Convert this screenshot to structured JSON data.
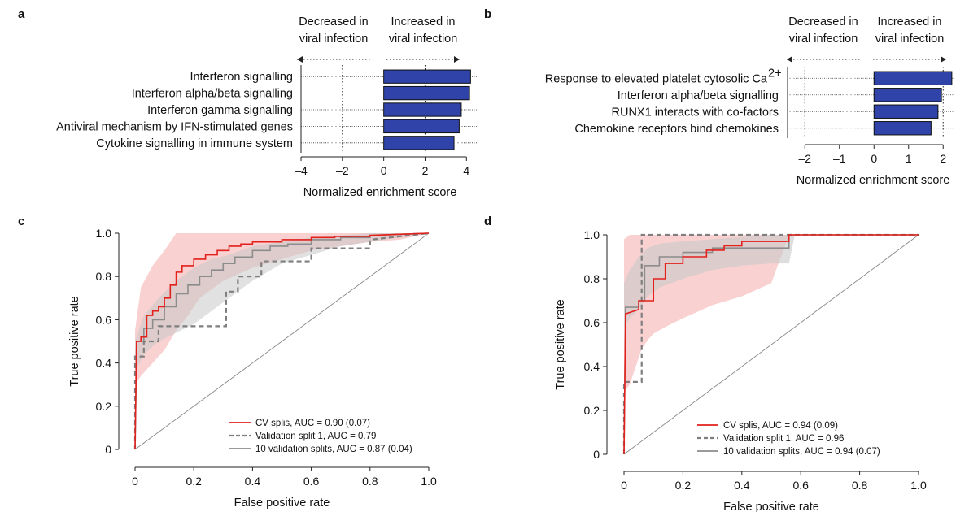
{
  "chart_data": [
    {
      "panel": "a",
      "type": "bar",
      "orientation": "horizontal",
      "direction_labels": {
        "left": [
          "Decreased in",
          "viral infection"
        ],
        "right": [
          "Increased in",
          "viral infection"
        ]
      },
      "categories": [
        "Interferon signalling",
        "Interferon alpha/beta signalling",
        "Interferon gamma signalling",
        "Antiviral mechanism by IFN-stimulated genes",
        "Cytokine signalling in immune system"
      ],
      "values": [
        4.2,
        4.15,
        3.75,
        3.65,
        3.4
      ],
      "xlabel": "Normalized enrichment score",
      "xlim": [
        -4,
        4.5
      ],
      "xticks": [
        -4,
        -2,
        0,
        2,
        4
      ],
      "xtick_labels": [
        "–4",
        "–2",
        "0",
        "2",
        "4"
      ],
      "vlines": [
        -2,
        2
      ],
      "bar_color": "#2f43a8"
    },
    {
      "panel": "b",
      "type": "bar",
      "orientation": "horizontal",
      "direction_labels": {
        "left": [
          "Decreased in",
          "viral infection"
        ],
        "right": [
          "Increased in",
          "viral infection"
        ]
      },
      "categories": [
        "Response to elevated platelet cytosolic Ca",
        "Interferon alpha/beta signalling",
        "RUNX1 interacts with co-factors",
        "Chemokine receptors bind chemokines"
      ],
      "first_category_superscript": "2+",
      "values": [
        2.25,
        1.95,
        1.85,
        1.65
      ],
      "xlabel": "Normalized enrichment score",
      "xlim": [
        -2.5,
        2.3
      ],
      "xticks": [
        -2,
        -1,
        0,
        1,
        2
      ],
      "xtick_labels": [
        "–2",
        "–1",
        "0",
        "1",
        "2"
      ],
      "vlines": [
        -2,
        2
      ],
      "bar_color": "#2f43a8"
    },
    {
      "panel": "c",
      "type": "line",
      "xlabel": "False positive rate",
      "ylabel": "True positive rate",
      "xlim": [
        0,
        1
      ],
      "ylim": [
        0,
        1
      ],
      "ticks": [
        0,
        0.2,
        0.4,
        0.6,
        0.8,
        1.0
      ],
      "tick_labels": [
        "0",
        "0.2",
        "0.4",
        "0.6",
        "0.8",
        "1.0"
      ],
      "legend_position": "bottom-right",
      "series": [
        {
          "name": "CV splis, AUC = 0.90 (0.07)",
          "style": "solid",
          "color": "#e3211c",
          "x": [
            0,
            0.005,
            0.005,
            0.02,
            0.02,
            0.04,
            0.04,
            0.06,
            0.06,
            0.08,
            0.08,
            0.1,
            0.1,
            0.12,
            0.12,
            0.14,
            0.14,
            0.16,
            0.16,
            0.2,
            0.2,
            0.24,
            0.24,
            0.28,
            0.28,
            0.32,
            0.32,
            0.36,
            0.36,
            0.4,
            0.4,
            0.5,
            0.5,
            0.6,
            0.6,
            0.68,
            0.68,
            0.8,
            0.8,
            1.0
          ],
          "y": [
            0,
            0.48,
            0.5,
            0.5,
            0.52,
            0.52,
            0.62,
            0.62,
            0.64,
            0.64,
            0.66,
            0.66,
            0.7,
            0.7,
            0.76,
            0.76,
            0.82,
            0.82,
            0.85,
            0.85,
            0.88,
            0.88,
            0.9,
            0.9,
            0.92,
            0.92,
            0.94,
            0.94,
            0.95,
            0.95,
            0.96,
            0.96,
            0.97,
            0.97,
            0.98,
            0.98,
            0.985,
            0.985,
            0.99,
            1.0
          ]
        },
        {
          "name": "Validation split 1, AUC = 0.79",
          "style": "dashed",
          "color": "#7f7f7f",
          "x": [
            0,
            0,
            0.03,
            0.03,
            0.08,
            0.08,
            0.31,
            0.31,
            0.35,
            0.35,
            0.43,
            0.43,
            0.6,
            0.6,
            0.8,
            0.8,
            1.0
          ],
          "y": [
            0,
            0.43,
            0.43,
            0.5,
            0.5,
            0.57,
            0.57,
            0.73,
            0.73,
            0.8,
            0.8,
            0.87,
            0.87,
            0.93,
            0.93,
            0.97,
            1.0
          ]
        },
        {
          "name": "10 validation splits, AUC = 0.87 (0.04)",
          "style": "solid",
          "color": "#8c8c8c",
          "x": [
            0,
            0.005,
            0.005,
            0.03,
            0.03,
            0.06,
            0.06,
            0.1,
            0.1,
            0.14,
            0.14,
            0.18,
            0.18,
            0.22,
            0.22,
            0.26,
            0.26,
            0.3,
            0.3,
            0.34,
            0.34,
            0.4,
            0.4,
            0.46,
            0.46,
            0.52,
            0.52,
            0.6,
            0.6,
            0.7,
            0.7,
            0.8,
            0.8,
            1.0
          ],
          "y": [
            0,
            0.42,
            0.5,
            0.5,
            0.56,
            0.56,
            0.6,
            0.6,
            0.66,
            0.66,
            0.72,
            0.72,
            0.76,
            0.76,
            0.8,
            0.8,
            0.83,
            0.83,
            0.86,
            0.86,
            0.89,
            0.89,
            0.92,
            0.92,
            0.94,
            0.94,
            0.95,
            0.95,
            0.97,
            0.97,
            0.98,
            0.98,
            0.99,
            1.0
          ]
        },
        {
          "name": "",
          "style": "thin",
          "color": "#888888",
          "x": [
            0,
            1
          ],
          "y": [
            0,
            1
          ]
        }
      ],
      "bands": [
        {
          "color": "#f4a3a3",
          "opacity": 0.5,
          "x": [
            0,
            0.02,
            0.06,
            0.1,
            0.14,
            0.18,
            0.22,
            0.3,
            0.4,
            0.5,
            0.6,
            0.7,
            0.8,
            0.9,
            1.0
          ],
          "upper": [
            0.55,
            0.75,
            0.85,
            0.92,
            1.0,
            1.0,
            1.0,
            1.0,
            1.0,
            1.0,
            1.0,
            1.0,
            1.0,
            1.0,
            1.0
          ],
          "lower": [
            0.3,
            0.34,
            0.4,
            0.46,
            0.55,
            0.62,
            0.7,
            0.78,
            0.84,
            0.88,
            0.92,
            0.94,
            0.96,
            0.97,
            1.0
          ]
        },
        {
          "color": "#c8c8c8",
          "opacity": 0.55,
          "x": [
            0,
            0.03,
            0.08,
            0.14,
            0.2,
            0.26,
            0.32,
            0.4,
            0.5,
            0.6,
            0.7,
            0.8,
            1.0
          ],
          "upper": [
            0.5,
            0.62,
            0.7,
            0.78,
            0.84,
            0.88,
            0.9,
            0.94,
            0.96,
            0.98,
            0.99,
            1.0,
            1.0
          ],
          "lower": [
            0.36,
            0.44,
            0.5,
            0.54,
            0.58,
            0.64,
            0.7,
            0.78,
            0.86,
            0.9,
            0.94,
            0.96,
            1.0
          ]
        }
      ]
    },
    {
      "panel": "d",
      "type": "line",
      "xlabel": "False positive rate",
      "ylabel": "True positive rate",
      "xlim": [
        0,
        1
      ],
      "ylim": [
        0,
        1
      ],
      "ticks": [
        0,
        0.2,
        0.4,
        0.6,
        0.8,
        1.0
      ],
      "tick_labels": [
        "0",
        "0.2",
        "0.4",
        "0.6",
        "0.8",
        "1.0"
      ],
      "legend_position": "bottom-right",
      "series": [
        {
          "name": "CV splis, AUC = 0.94 (0.09)",
          "style": "solid",
          "color": "#e3211c",
          "x": [
            0,
            0.005,
            0.005,
            0.05,
            0.05,
            0.1,
            0.1,
            0.14,
            0.14,
            0.2,
            0.2,
            0.28,
            0.28,
            0.34,
            0.34,
            0.4,
            0.4,
            0.56,
            0.56,
            1.0
          ],
          "y": [
            0,
            0.6,
            0.64,
            0.66,
            0.7,
            0.7,
            0.8,
            0.8,
            0.87,
            0.87,
            0.9,
            0.9,
            0.93,
            0.93,
            0.95,
            0.95,
            0.97,
            0.97,
            1.0,
            1.0
          ]
        },
        {
          "name": "Validation split 1, AUC = 0.96",
          "style": "dashed",
          "color": "#7f7f7f",
          "x": [
            0,
            0,
            0.06,
            0.06,
            1.0
          ],
          "y": [
            0,
            0.33,
            0.33,
            1.0,
            1.0
          ]
        },
        {
          "name": "10 validation splits, AUC = 0.94 (0.07)",
          "style": "solid",
          "color": "#8c8c8c",
          "x": [
            0,
            0.005,
            0.005,
            0.05,
            0.05,
            0.07,
            0.07,
            0.12,
            0.12,
            0.2,
            0.2,
            0.3,
            0.3,
            0.56,
            0.56,
            1.0
          ],
          "y": [
            0,
            0.64,
            0.67,
            0.67,
            0.7,
            0.7,
            0.86,
            0.86,
            0.9,
            0.9,
            0.92,
            0.92,
            0.94,
            0.94,
            1.0,
            1.0
          ]
        },
        {
          "name": "",
          "style": "thin",
          "color": "#888888",
          "x": [
            0,
            1
          ],
          "y": [
            0,
            1
          ]
        }
      ],
      "bands": [
        {
          "color": "#f4a3a3",
          "opacity": 0.5,
          "x": [
            0,
            0.02,
            0.04,
            0.06,
            0.08,
            0.1,
            0.14,
            0.2,
            0.3,
            0.4,
            0.5,
            0.56,
            1.0
          ],
          "upper": [
            0.98,
            1.0,
            1.0,
            1.0,
            1.0,
            1.0,
            1.0,
            1.0,
            1.0,
            1.0,
            1.0,
            1.0,
            1.0
          ],
          "lower": [
            0.28,
            0.32,
            0.4,
            0.48,
            0.52,
            0.55,
            0.58,
            0.62,
            0.68,
            0.72,
            0.78,
            1.0,
            1.0
          ]
        },
        {
          "color": "#c8c8c8",
          "opacity": 0.6,
          "x": [
            0,
            0.02,
            0.05,
            0.08,
            0.12,
            0.2,
            0.3,
            0.4,
            0.5,
            0.56,
            0.58,
            1.0
          ],
          "upper": [
            0.78,
            0.84,
            0.9,
            0.94,
            0.96,
            0.97,
            0.98,
            0.99,
            1.0,
            1.0,
            1.0,
            1.0
          ],
          "lower": [
            0.58,
            0.62,
            0.66,
            0.72,
            0.76,
            0.8,
            0.84,
            0.86,
            0.87,
            0.87,
            1.0,
            1.0
          ]
        }
      ]
    }
  ],
  "panel_labels": [
    "a",
    "b",
    "c",
    "d"
  ],
  "colors": {
    "bar": "#2f43a8",
    "cv_line": "#e3211c",
    "validation_line": "#7f7f7f",
    "band_cv": "#f4a3a3",
    "band_val": "#c8c8c8"
  }
}
